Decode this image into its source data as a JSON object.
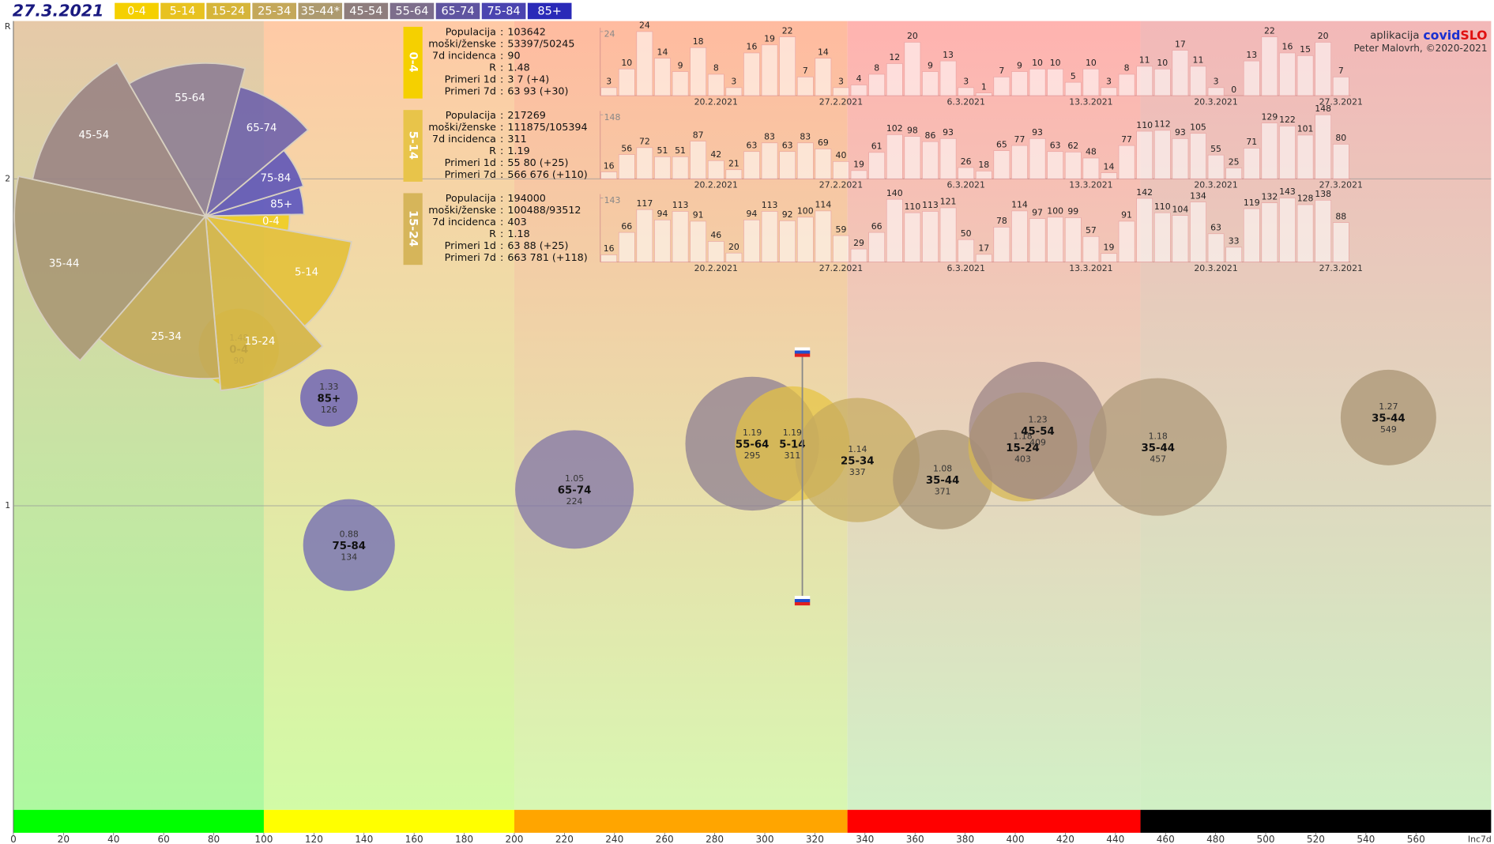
{
  "header": {
    "date": "27.3.2021",
    "legend": [
      {
        "label": "0-4",
        "color": "#f5d000"
      },
      {
        "label": "5-14",
        "color": "#e8c21f"
      },
      {
        "label": "15-24",
        "color": "#d6b53a"
      },
      {
        "label": "25-34",
        "color": "#c4a85a"
      },
      {
        "label": "35-44*",
        "color": "#ad9a6f"
      },
      {
        "label": "45-54",
        "color": "#8e7d7d"
      },
      {
        "label": "55-64",
        "color": "#7d6e8c"
      },
      {
        "label": "65-74",
        "color": "#5f54a0"
      },
      {
        "label": "75-84",
        "color": "#4a44b0"
      },
      {
        "label": "85+",
        "color": "#2a2ab8"
      }
    ],
    "credit_app": "aplikacija",
    "credit_brand_1": "covid",
    "credit_brand_2": "SLO",
    "credit_author": "Peter Malovrh, ©2020-2021"
  },
  "chart_data": [
    {
      "type": "bubble",
      "x_label": "Inc7d",
      "y_label": "R",
      "xlim": [
        0,
        590
      ],
      "ylim": [
        0,
        2.5
      ],
      "xticks": [
        0,
        20,
        40,
        60,
        80,
        100,
        120,
        140,
        160,
        180,
        200,
        220,
        240,
        260,
        280,
        300,
        320,
        340,
        360,
        380,
        400,
        420,
        440,
        460,
        480,
        500,
        520,
        540,
        560
      ],
      "yticks": [
        1,
        2
      ],
      "grid": true,
      "zones": [
        {
          "from": 0,
          "to": 100,
          "color": "#00ff00",
          "bg_top": "#e6c9a8",
          "bg_bottom": "#aef9a0"
        },
        {
          "from": 100,
          "to": 200,
          "color": "#ffff00",
          "bg_top": "#ffcaa6",
          "bg_bottom": "#d2fba6"
        },
        {
          "from": 200,
          "to": 333,
          "color": "#ffa500",
          "bg_top": "#ffbba0",
          "bg_bottom": "#d8f7b2"
        },
        {
          "from": 333,
          "to": 450,
          "color": "#ff0000",
          "bg_top": "#ffb3b0",
          "bg_bottom": "#d2f0c6"
        },
        {
          "from": 450,
          "to": 590,
          "color": "#000000",
          "bg_top": "#f3b8b8",
          "bg_bottom": "#d0f0c4"
        }
      ],
      "points": [
        {
          "name": "0-4",
          "r": 1.48,
          "x": 90,
          "size": 42,
          "color": "#e8c81f"
        },
        {
          "name": "85+",
          "r": 1.33,
          "x": 126,
          "size": 30,
          "color": "#5a4fb8"
        },
        {
          "name": "75-84",
          "r": 0.88,
          "x": 134,
          "size": 48,
          "color": "#6a61b5"
        },
        {
          "name": "65-74",
          "r": 1.05,
          "x": 224,
          "size": 62,
          "color": "#7c6fa8"
        },
        {
          "name": "55-64",
          "r": 1.19,
          "x": 295,
          "size": 70,
          "color": "#8b7b92"
        },
        {
          "name": "5-14",
          "r": 1.19,
          "x": 311,
          "size": 60,
          "color": "#e6c441"
        },
        {
          "name": "25-34",
          "r": 1.14,
          "x": 337,
          "size": 65,
          "color": "#c6aa5e"
        },
        {
          "name": "35-44",
          "r": 1.08,
          "x": 371,
          "size": 52,
          "color": "#a89170"
        },
        {
          "name": "15-24",
          "r": 1.18,
          "x": 403,
          "size": 57,
          "color": "#d6b751"
        },
        {
          "name": "45-54",
          "r": 1.23,
          "x": 409,
          "size": 72,
          "color": "#9a8285"
        },
        {
          "name": "35-44",
          "r": 1.18,
          "x": 457,
          "size": 72,
          "color": "#ad9777"
        },
        {
          "name": "35-44",
          "r": 1.27,
          "x": 549,
          "size": 50,
          "color": "#a89170"
        }
      ],
      "slovenia": {
        "x": 315,
        "high": 1.47,
        "low": 0.71
      }
    },
    {
      "type": "polar_area",
      "categories": [
        "85+",
        "0-4",
        "5-14",
        "15-24",
        "25-34",
        "35-44",
        "45-54",
        "55-64",
        "65-74",
        "75-84"
      ],
      "values": [
        103,
        88,
        155,
        183,
        170,
        200,
        185,
        160,
        140,
        107
      ],
      "angles": [
        16,
        11,
        38,
        37,
        46,
        61,
        48,
        45,
        35,
        23
      ],
      "start_angle": -17,
      "colors": [
        "#5b55c0",
        "#f0cd20",
        "#e3c03a",
        "#d4b548",
        "#c2a85c",
        "#a99774",
        "#9a8484",
        "#8e7e95",
        "#6e62ac",
        "#5e55b8"
      ]
    },
    {
      "type": "bar",
      "tag": "0-4",
      "tag_color": "#f5d000",
      "separator": ":",
      "info": [
        [
          "Populacija",
          103642
        ],
        [
          "moški/ženske",
          "53397/50245"
        ],
        [
          "7d incidenca",
          90
        ],
        [
          "R",
          1.48
        ],
        [
          "Primeri 1d",
          "3 7 (+4)"
        ],
        [
          "Primeri 7d",
          "63 93 (+30)"
        ]
      ],
      "categories": [
        null,
        null,
        null,
        null,
        null,
        null,
        "20.2.2021",
        null,
        null,
        null,
        null,
        null,
        null,
        "27.2.2021",
        null,
        null,
        null,
        null,
        null,
        null,
        "6.3.2021",
        null,
        null,
        null,
        null,
        null,
        null,
        "13.3.2021",
        null,
        null,
        null,
        null,
        null,
        null,
        "20.3.2021",
        null,
        null,
        null,
        null,
        null,
        null,
        "27.3.2021"
      ],
      "values": [
        3,
        10,
        24,
        14,
        9,
        18,
        8,
        3,
        16,
        19,
        22,
        7,
        14,
        3,
        4,
        8,
        12,
        20,
        9,
        13,
        3,
        1,
        7,
        9,
        10,
        10,
        5,
        10,
        3,
        8,
        11,
        10,
        17,
        11,
        3,
        0,
        13,
        22,
        16,
        15,
        20,
        7
      ],
      "ylim": [
        0,
        24
      ],
      "yticks": [
        24
      ],
      "color": "#ffffff"
    },
    {
      "type": "bar",
      "tag": "5-14",
      "tag_color": "#e8c44a",
      "separator": ":",
      "info": [
        [
          "Populacija",
          217269
        ],
        [
          "moški/ženske",
          "111875/105394"
        ],
        [
          "7d incidenca",
          311
        ],
        [
          "R",
          1.19
        ],
        [
          "Primeri 1d",
          "55 80 (+25)"
        ],
        [
          "Primeri 7d",
          "566 676 (+110)"
        ]
      ],
      "categories": [
        null,
        null,
        null,
        null,
        null,
        null,
        "20.2.2021",
        null,
        null,
        null,
        null,
        null,
        null,
        "27.2.2021",
        null,
        null,
        null,
        null,
        null,
        null,
        "6.3.2021",
        null,
        null,
        null,
        null,
        null,
        null,
        "13.3.2021",
        null,
        null,
        null,
        null,
        null,
        null,
        "20.3.2021",
        null,
        null,
        null,
        null,
        null,
        null,
        "27.3.2021"
      ],
      "values": [
        16,
        56,
        72,
        51,
        51,
        87,
        42,
        21,
        63,
        83,
        63,
        83,
        69,
        40,
        19,
        61,
        102,
        98,
        86,
        93,
        26,
        18,
        65,
        77,
        93,
        63,
        62,
        48,
        14,
        77,
        110,
        112,
        93,
        105,
        55,
        25,
        71,
        129,
        122,
        101,
        148,
        80
      ],
      "ylim": [
        0,
        148
      ],
      "yticks": [
        148
      ],
      "color": "#ffffff"
    },
    {
      "type": "bar",
      "tag": "15-24",
      "tag_color": "#d6b55a",
      "separator": ":",
      "info": [
        [
          "Populacija",
          194000
        ],
        [
          "moški/ženske",
          "100488/93512"
        ],
        [
          "7d incidenca",
          403
        ],
        [
          "R",
          1.18
        ],
        [
          "Primeri 1d",
          "63 88 (+25)"
        ],
        [
          "Primeri 7d",
          "663 781 (+118)"
        ]
      ],
      "categories": [
        null,
        null,
        null,
        null,
        null,
        null,
        "20.2.2021",
        null,
        null,
        null,
        null,
        null,
        null,
        "27.2.2021",
        null,
        null,
        null,
        null,
        null,
        null,
        "6.3.2021",
        null,
        null,
        null,
        null,
        null,
        null,
        "13.3.2021",
        null,
        null,
        null,
        null,
        null,
        null,
        "20.3.2021",
        null,
        null,
        null,
        null,
        null,
        null,
        "27.3.2021"
      ],
      "values": [
        16,
        66,
        117,
        94,
        113,
        91,
        46,
        20,
        94,
        113,
        92,
        100,
        114,
        59,
        29,
        66,
        140,
        110,
        113,
        121,
        50,
        17,
        78,
        114,
        97,
        100,
        99,
        57,
        19,
        91,
        142,
        110,
        104,
        134,
        63,
        33,
        119,
        132,
        143,
        128,
        138,
        88
      ],
      "ylim": [
        0,
        143
      ],
      "yticks": [
        143
      ],
      "color": "#ffffff"
    }
  ]
}
